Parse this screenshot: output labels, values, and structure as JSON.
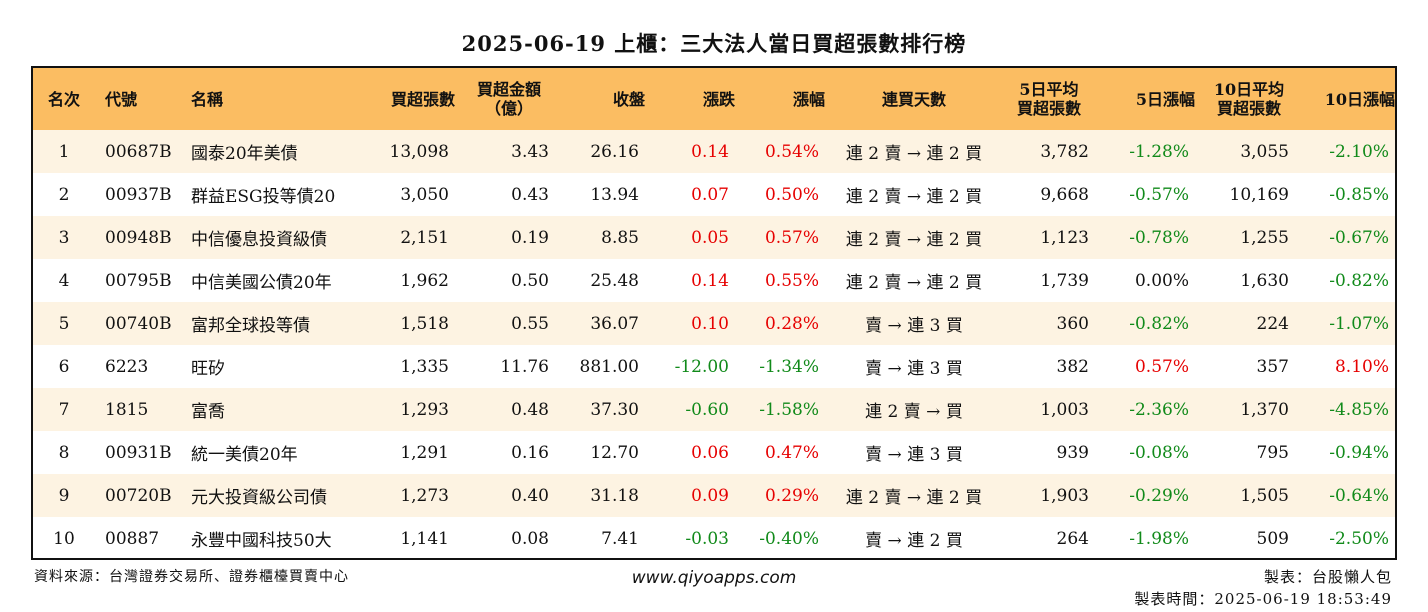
{
  "title": "2025-06-19 上櫃：三大法人當日買超張數排行榜",
  "headers": [
    "名次",
    "代號",
    "名稱",
    "買超張數",
    "買超金額\n（億）",
    "收盤",
    "漲跌",
    "漲幅",
    "連買天數",
    "5日平均\n買超張數",
    "5日漲幅",
    "10日平均\n買超張數",
    "10日漲幅"
  ],
  "rows": [
    {
      "rank": "1",
      "code": "00687B",
      "name": "國泰20年美債",
      "net_buy": "13,098",
      "amount": "3.43",
      "close": "26.16",
      "change": "0.14",
      "pct": "0.54%",
      "streak": "連 2 賣 → 連 2 買",
      "avg5": "3,782",
      "pct5": "-1.28%",
      "avg10": "3,055",
      "pct10": "-2.10%"
    },
    {
      "rank": "2",
      "code": "00937B",
      "name": "群益ESG投等債20",
      "net_buy": "3,050",
      "amount": "0.43",
      "close": "13.94",
      "change": "0.07",
      "pct": "0.50%",
      "streak": "連 2 賣 → 連 2 買",
      "avg5": "9,668",
      "pct5": "-0.57%",
      "avg10": "10,169",
      "pct10": "-0.85%"
    },
    {
      "rank": "3",
      "code": "00948B",
      "name": "中信優息投資級債",
      "net_buy": "2,151",
      "amount": "0.19",
      "close": "8.85",
      "change": "0.05",
      "pct": "0.57%",
      "streak": "連 2 賣 → 連 2 買",
      "avg5": "1,123",
      "pct5": "-0.78%",
      "avg10": "1,255",
      "pct10": "-0.67%"
    },
    {
      "rank": "4",
      "code": "00795B",
      "name": "中信美國公債20年",
      "net_buy": "1,962",
      "amount": "0.50",
      "close": "25.48",
      "change": "0.14",
      "pct": "0.55%",
      "streak": "連 2 賣 → 連 2 買",
      "avg5": "1,739",
      "pct5": "0.00%",
      "avg10": "1,630",
      "pct10": "-0.82%"
    },
    {
      "rank": "5",
      "code": "00740B",
      "name": "富邦全球投等債",
      "net_buy": "1,518",
      "amount": "0.55",
      "close": "36.07",
      "change": "0.10",
      "pct": "0.28%",
      "streak": "賣 → 連 3 買",
      "avg5": "360",
      "pct5": "-0.82%",
      "avg10": "224",
      "pct10": "-1.07%"
    },
    {
      "rank": "6",
      "code": "6223",
      "name": "旺矽",
      "net_buy": "1,335",
      "amount": "11.76",
      "close": "881.00",
      "change": "-12.00",
      "pct": "-1.34%",
      "streak": "賣 → 連 3 買",
      "avg5": "382",
      "pct5": "0.57%",
      "avg10": "357",
      "pct10": "8.10%"
    },
    {
      "rank": "7",
      "code": "1815",
      "name": "富喬",
      "net_buy": "1,293",
      "amount": "0.48",
      "close": "37.30",
      "change": "-0.60",
      "pct": "-1.58%",
      "streak": "連 2 賣 → 買",
      "avg5": "1,003",
      "pct5": "-2.36%",
      "avg10": "1,370",
      "pct10": "-4.85%"
    },
    {
      "rank": "8",
      "code": "00931B",
      "name": "統一美債20年",
      "net_buy": "1,291",
      "amount": "0.16",
      "close": "12.70",
      "change": "0.06",
      "pct": "0.47%",
      "streak": "賣 → 連 3 買",
      "avg5": "939",
      "pct5": "-0.08%",
      "avg10": "795",
      "pct10": "-0.94%"
    },
    {
      "rank": "9",
      "code": "00720B",
      "name": "元大投資級公司債",
      "net_buy": "1,273",
      "amount": "0.40",
      "close": "31.18",
      "change": "0.09",
      "pct": "0.29%",
      "streak": "連 2 賣 → 連 2 買",
      "avg5": "1,903",
      "pct5": "-0.29%",
      "avg10": "1,505",
      "pct10": "-0.64%"
    },
    {
      "rank": "10",
      "code": "00887",
      "name": "永豐中國科技50大",
      "net_buy": "1,141",
      "amount": "0.08",
      "close": "7.41",
      "change": "-0.03",
      "pct": "-0.40%",
      "streak": "賣 → 連 2 買",
      "avg5": "264",
      "pct5": "-1.98%",
      "avg10": "509",
      "pct10": "-2.50%"
    }
  ],
  "footer": {
    "source": "資料來源：台灣證券交易所、證券櫃檯買賣中心",
    "website": "www.qiyoapps.com",
    "maker": "製表：台股懶人包",
    "made_time": "製表時間：2025-06-19 18:53:49"
  },
  "colors": {
    "header_bg": "#fbbd62",
    "odd_row_bg": "#fdf3e2",
    "up": "#e60000",
    "down": "#118a1a"
  }
}
